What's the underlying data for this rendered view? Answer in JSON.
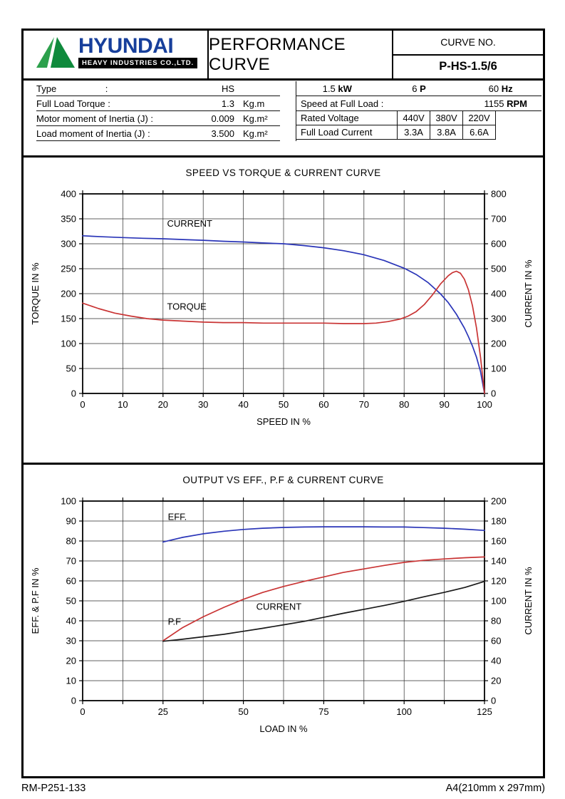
{
  "page": {
    "footer_left": "RM-P251-133",
    "footer_right": "A4(210mm x 297mm)"
  },
  "header": {
    "brand": "HYUNDAI",
    "brand_sub": "HEAVY INDUSTRIES CO.,LTD.",
    "title": "PERFORMANCE CURVE",
    "curve_no_label": "CURVE NO.",
    "curve_no_value": "P-HS-1.5/6"
  },
  "specs_left": {
    "rows": [
      {
        "label": "Type                   :",
        "value": "HS",
        "unit": ""
      },
      {
        "label": "Full Load Torque :",
        "value": "1.3",
        "unit": "Kg.m"
      },
      {
        "label": "Motor moment of Inertia (J) :",
        "value": "0.009",
        "unit": "Kg.m²"
      },
      {
        "label": "Load moment of Inertia (J) :",
        "value": "3.500",
        "unit": "Kg.m²"
      }
    ]
  },
  "specs_right": {
    "rating": [
      {
        "value": "1.5",
        "unit": "kW"
      },
      {
        "value": "6",
        "unit": "P"
      },
      {
        "value": "60",
        "unit": "Hz"
      }
    ],
    "speed_label": "Speed at Full Load :",
    "speed_value": "1155",
    "speed_unit": "RPM",
    "voltage_row": {
      "label": "Rated Voltage",
      "values": [
        "440V",
        "380V",
        "220V",
        ""
      ]
    },
    "current_row": {
      "label": "Full Load Current",
      "values": [
        "3.3A",
        "3.8A",
        "6.6A",
        ""
      ]
    }
  },
  "chart_data": [
    {
      "type": "line",
      "title": "SPEED VS TORQUE & CURRENT CURVE",
      "xlabel": "SPEED IN %",
      "ylabel_left": "TORQUE IN %",
      "ylabel_right": "CURRENT IN %",
      "xlim": [
        0,
        100
      ],
      "xtick_step": 10,
      "xlabel_every": 1,
      "ylim_left": [
        0,
        400
      ],
      "ytick_step_left": 50,
      "ylim_right": [
        0,
        800
      ],
      "ytick_step_right": 100,
      "grid": true,
      "series": [
        {
          "name": "CURRENT",
          "color": "#2a35b8",
          "axis": "right",
          "label": {
            "text": "CURRENT",
            "x": 21,
            "y": 668
          },
          "points": [
            [
              0,
              632
            ],
            [
              5,
              628
            ],
            [
              10,
              625
            ],
            [
              15,
              622
            ],
            [
              20,
              620
            ],
            [
              25,
              617
            ],
            [
              30,
              614
            ],
            [
              35,
              610
            ],
            [
              40,
              607
            ],
            [
              45,
              603
            ],
            [
              50,
              600
            ],
            [
              55,
              593
            ],
            [
              60,
              584
            ],
            [
              65,
              572
            ],
            [
              70,
              556
            ],
            [
              75,
              533
            ],
            [
              80,
              502
            ],
            [
              83,
              477
            ],
            [
              86,
              444
            ],
            [
              89,
              400
            ],
            [
              91,
              364
            ],
            [
              93,
              318
            ],
            [
              95,
              262
            ],
            [
              96,
              228
            ],
            [
              97,
              190
            ],
            [
              98,
              146
            ],
            [
              99,
              88
            ],
            [
              100,
              0
            ]
          ]
        },
        {
          "name": "TORQUE",
          "color": "#c93434",
          "axis": "left",
          "label": {
            "text": "TORQUE",
            "x": 21,
            "y": 168
          },
          "points": [
            [
              0,
              181
            ],
            [
              4,
              170
            ],
            [
              8,
              161
            ],
            [
              12,
              155
            ],
            [
              16,
              150
            ],
            [
              20,
              147
            ],
            [
              25,
              145
            ],
            [
              30,
              143
            ],
            [
              35,
              142
            ],
            [
              40,
              142
            ],
            [
              45,
              141
            ],
            [
              50,
              141
            ],
            [
              55,
              141
            ],
            [
              60,
              141
            ],
            [
              65,
              140
            ],
            [
              70,
              140
            ],
            [
              73,
              141
            ],
            [
              76,
              144
            ],
            [
              79,
              149
            ],
            [
              81,
              155
            ],
            [
              83,
              164
            ],
            [
              85,
              178
            ],
            [
              87,
              197
            ],
            [
              89,
              219
            ],
            [
              91,
              236
            ],
            [
              92,
              242
            ],
            [
              93,
              245
            ],
            [
              94,
              241
            ],
            [
              95,
              229
            ],
            [
              96,
              208
            ],
            [
              97,
              176
            ],
            [
              98,
              132
            ],
            [
              99,
              73
            ],
            [
              100,
              0
            ]
          ]
        }
      ]
    },
    {
      "type": "line",
      "title": "OUTPUT VS EFF., P.F & CURRENT CURVE",
      "xlabel": "LOAD IN %",
      "ylabel_left": "EFF. & P.F IN %",
      "ylabel_right": "CURRENT IN %",
      "xlim": [
        0,
        125
      ],
      "xtick_step": 12.5,
      "xlabel_every": 2,
      "ylim_left": [
        0,
        100
      ],
      "ytick_step_left": 10,
      "ylim_right": [
        0,
        200
      ],
      "ytick_step_right": 20,
      "grid": true,
      "series": [
        {
          "name": "EFF.",
          "color": "#2a35b8",
          "axis": "left",
          "label": {
            "text": "EFF.",
            "x": 26.5,
            "y": 90.5
          },
          "points": [
            [
              25,
              79.5
            ],
            [
              31,
              81.8
            ],
            [
              37.5,
              83.6
            ],
            [
              44,
              84.9
            ],
            [
              50,
              85.8
            ],
            [
              56,
              86.4
            ],
            [
              62.5,
              86.8
            ],
            [
              69,
              87
            ],
            [
              75,
              87.1
            ],
            [
              81,
              87.1
            ],
            [
              87.5,
              87.1
            ],
            [
              94,
              87
            ],
            [
              100,
              87
            ],
            [
              106,
              86.7
            ],
            [
              112.5,
              86.4
            ],
            [
              119,
              85.9
            ],
            [
              125,
              85.3
            ]
          ]
        },
        {
          "name": "P.F",
          "color": "#c93434",
          "axis": "left",
          "label": {
            "text": "P.F",
            "x": 26.5,
            "y": 38
          },
          "points": [
            [
              25,
              30
            ],
            [
              31,
              36.5
            ],
            [
              37.5,
              42
            ],
            [
              44,
              46.8
            ],
            [
              50,
              50.8
            ],
            [
              56,
              54.2
            ],
            [
              62.5,
              57.2
            ],
            [
              69,
              59.8
            ],
            [
              75,
              62
            ],
            [
              81,
              64.2
            ],
            [
              87.5,
              66
            ],
            [
              94,
              67.8
            ],
            [
              100,
              69.3
            ],
            [
              106,
              70.3
            ],
            [
              112.5,
              71
            ],
            [
              119,
              71.6
            ],
            [
              125,
              72
            ]
          ]
        },
        {
          "name": "CURRENT",
          "color": "#1a1a1a",
          "axis": "right",
          "label": {
            "text": "CURRENT",
            "x": 54,
            "y": 91
          },
          "points": [
            [
              25,
              59.5
            ],
            [
              31,
              61.5
            ],
            [
              37.5,
              64
            ],
            [
              44,
              66.5
            ],
            [
              50,
              69.5
            ],
            [
              56,
              72.5
            ],
            [
              62.5,
              76
            ],
            [
              69,
              79.5
            ],
            [
              75,
              83.5
            ],
            [
              81,
              87.5
            ],
            [
              87.5,
              91.5
            ],
            [
              94,
              95.5
            ],
            [
              100,
              99.5
            ],
            [
              106,
              104
            ],
            [
              112.5,
              108.5
            ],
            [
              119,
              113.5
            ],
            [
              125,
              119.5
            ]
          ]
        }
      ]
    }
  ]
}
